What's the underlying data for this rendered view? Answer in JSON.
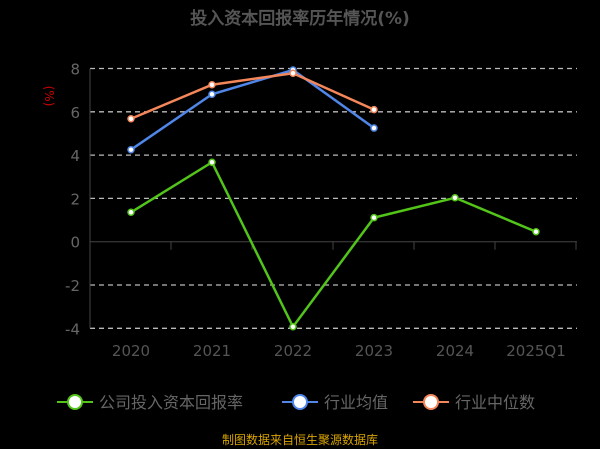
{
  "chart_data": {
    "type": "line",
    "title": "投入资本回报率历年情况(%)",
    "ylabel": "(%)",
    "categories": [
      "2020",
      "2021",
      "2022",
      "2023",
      "2024",
      "2025Q1"
    ],
    "ylim": [
      -4,
      8
    ],
    "yticks": [
      8,
      6,
      4,
      2,
      0,
      -2,
      -4
    ],
    "grid": true,
    "legend_placement": "bottom",
    "series": [
      {
        "name": "公司投入资本回报率",
        "color": "#52c41a",
        "values": [
          1.36,
          3.67,
          -3.93,
          1.11,
          2.03,
          0.46
        ]
      },
      {
        "name": "行业均值",
        "color": "#4f86e8",
        "values": [
          4.25,
          6.81,
          7.93,
          5.25,
          null,
          null
        ]
      },
      {
        "name": "行业中位数",
        "color": "#f4875a",
        "values": [
          5.68,
          7.25,
          7.78,
          6.1,
          null,
          null
        ]
      }
    ]
  },
  "footer": "制图数据来自恒生聚源数据库"
}
